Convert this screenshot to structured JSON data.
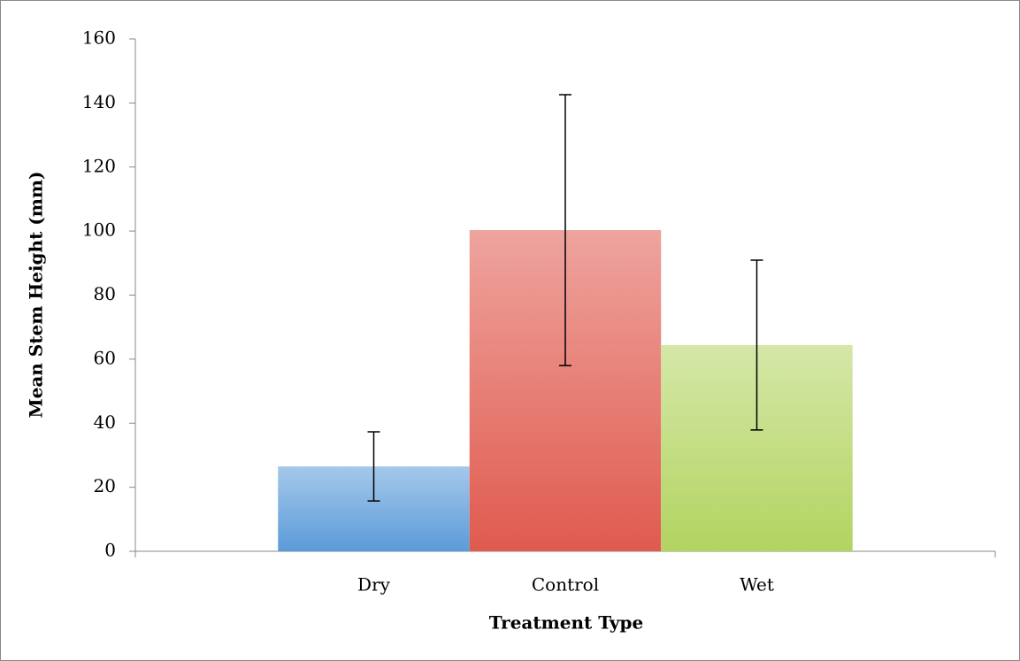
{
  "chart_data": {
    "type": "bar",
    "categories": [
      "Dry",
      "Control",
      "Wet"
    ],
    "values": [
      26.5,
      100.3,
      64.4
    ],
    "errors": [
      10.8,
      42.3,
      26.5
    ],
    "colors": [
      "#5b9bd9",
      "#e05a4e",
      "#b2d460"
    ],
    "x_label": "Treatment Type",
    "y_label": "Mean Stem Height (mm)",
    "ylim": [
      0,
      160
    ],
    "yticks": [
      0,
      20,
      40,
      60,
      80,
      100,
      120,
      140,
      160
    ],
    "grid": false
  }
}
